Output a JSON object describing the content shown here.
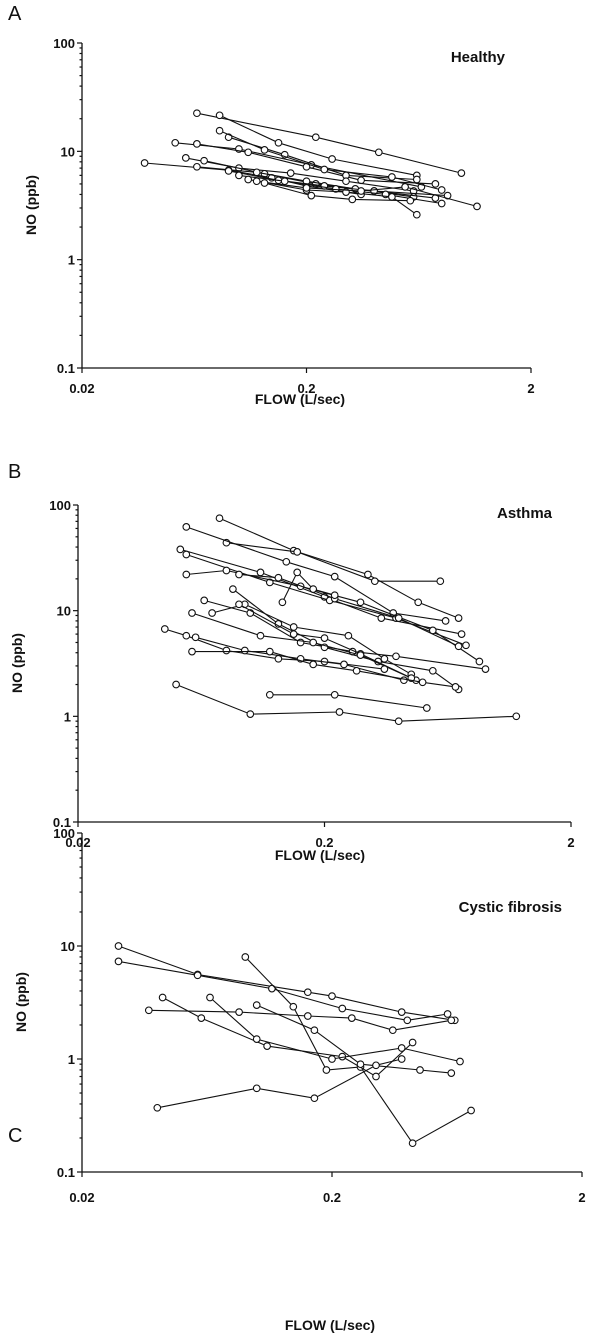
{
  "chart_data": [
    {
      "type": "line",
      "panel_letter": "A",
      "title": "Healthy",
      "xlabel": "FLOW (L/sec)",
      "ylabel": "NO (ppb)",
      "x_scale": "log",
      "y_scale": "log",
      "xlim": [
        0.02,
        2
      ],
      "ylim": [
        0.1,
        100
      ],
      "x_ticks": [
        "0.02",
        "0.2",
        "2"
      ],
      "y_ticks": [
        "100",
        "10",
        "1",
        "0.1"
      ],
      "grid": false,
      "series": [
        {
          "x": [
            0.065,
            0.22,
            0.42,
            0.98
          ],
          "y": [
            22.5,
            13.5,
            9.8,
            6.3
          ]
        },
        {
          "x": [
            0.082,
            0.15,
            0.26,
            0.62
          ],
          "y": [
            21.5,
            12,
            8.5,
            6
          ]
        },
        {
          "x": [
            0.052,
            0.1,
            0.21,
            0.65
          ],
          "y": [
            12,
            10.5,
            7.5,
            4.7
          ]
        },
        {
          "x": [
            0.065,
            0.11,
            0.2,
            0.35,
            0.75
          ],
          "y": [
            11.7,
            9.8,
            7.2,
            5.4,
            5
          ]
        },
        {
          "x": [
            0.09,
            0.16,
            0.3,
            0.62
          ],
          "y": [
            13.5,
            9.3,
            6,
            5.5
          ]
        },
        {
          "x": [
            0.082,
            0.13,
            0.24,
            0.48,
            0.8
          ],
          "y": [
            15.5,
            10.3,
            6.8,
            5.8,
            4.4
          ]
        },
        {
          "x": [
            0.058,
            0.1,
            0.17,
            0.3,
            0.6
          ],
          "y": [
            8.7,
            7,
            6.3,
            5.3,
            4.3
          ]
        },
        {
          "x": [
            0.07,
            0.13,
            0.22,
            0.4,
            0.85
          ],
          "y": [
            8.2,
            6.2,
            5,
            4.3,
            3.9
          ]
        },
        {
          "x": [
            0.038,
            0.09,
            0.14,
            0.2,
            0.35
          ],
          "y": [
            7.8,
            6.7,
            5.7,
            4.8,
            4
          ]
        },
        {
          "x": [
            0.065,
            0.12,
            0.2,
            0.33,
            0.6
          ],
          "y": [
            7.2,
            6.4,
            5.3,
            4.5,
            3.8
          ]
        },
        {
          "x": [
            0.09,
            0.15,
            0.24,
            0.4,
            0.75
          ],
          "y": [
            6.6,
            5.4,
            4.8,
            4.3,
            3.7
          ]
        },
        {
          "x": [
            0.1,
            0.16,
            0.27,
            0.45,
            0.8
          ],
          "y": [
            6,
            5.3,
            4.5,
            4,
            3.3
          ]
        },
        {
          "x": [
            0.11,
            0.2,
            0.3,
            0.48,
            0.62
          ],
          "y": [
            5.5,
            4.4,
            4.2,
            3.8,
            2.6
          ]
        },
        {
          "x": [
            0.12,
            0.2,
            0.35,
            0.55,
            1.15
          ],
          "y": [
            5.3,
            4.6,
            4.3,
            4.7,
            3.1
          ]
        },
        {
          "x": [
            0.13,
            0.21,
            0.32,
            0.58
          ],
          "y": [
            5.1,
            3.9,
            3.6,
            3.5
          ]
        }
      ]
    },
    {
      "type": "line",
      "panel_letter": "B",
      "title": "Asthma",
      "xlabel": "FLOW (L/sec)",
      "ylabel": "NO (ppb)",
      "x_scale": "log",
      "y_scale": "log",
      "xlim": [
        0.02,
        2
      ],
      "ylim": [
        0.1,
        100
      ],
      "x_ticks": [
        "0.02",
        "0.2",
        "2"
      ],
      "y_ticks": [
        "100",
        "10",
        "1",
        "0.1"
      ],
      "grid": false,
      "series": [
        {
          "x": [
            0.075,
            0.15,
            0.3,
            0.48,
            0.7
          ],
          "y": [
            75,
            37,
            22,
            12,
            8.5
          ]
        },
        {
          "x": [
            0.08,
            0.155,
            0.32,
            0.59
          ],
          "y": [
            44,
            36,
            19,
            19
          ]
        },
        {
          "x": [
            0.055,
            0.14,
            0.22,
            0.38,
            0.62
          ],
          "y": [
            62,
            29,
            21,
            9.5,
            8
          ]
        },
        {
          "x": [
            0.052,
            0.11,
            0.2,
            0.34,
            0.72
          ],
          "y": [
            38,
            23,
            13.5,
            8.5,
            6
          ]
        },
        {
          "x": [
            0.055,
            0.12,
            0.21,
            0.39,
            0.75
          ],
          "y": [
            34,
            18.5,
            12.5,
            8.5,
            4.7
          ]
        },
        {
          "x": [
            0.055,
            0.08,
            0.16,
            0.28,
            0.55,
            0.85
          ],
          "y": [
            22,
            24,
            17,
            12,
            6.5,
            3.3
          ]
        },
        {
          "x": [
            0.09,
            0.13,
            0.22,
            0.4,
            0.7
          ],
          "y": [
            22,
            20.5,
            13,
            8.5,
            4.6
          ]
        },
        {
          "x": [
            0.135,
            0.155,
            0.18,
            0.22
          ],
          "y": [
            12,
            23,
            16,
            14
          ]
        },
        {
          "x": [
            0.065,
            0.1,
            0.16,
            0.26,
            0.39,
            0.9
          ],
          "y": [
            12.5,
            9.5,
            5,
            4.1,
            3.7,
            2.8
          ]
        },
        {
          "x": [
            0.07,
            0.095,
            0.15,
            0.25,
            0.35,
            0.45
          ],
          "y": [
            9.5,
            11.5,
            7,
            5.8,
            3.5,
            2.5
          ]
        },
        {
          "x": [
            0.085,
            0.13,
            0.2,
            0.33,
            0.55,
            0.7
          ],
          "y": [
            16,
            7.5,
            4.5,
            3.3,
            2.7,
            1.8
          ]
        },
        {
          "x": [
            0.09,
            0.15,
            0.2,
            0.28,
            0.47
          ],
          "y": [
            11.5,
            6,
            5.5,
            3.9,
            2.2
          ]
        },
        {
          "x": [
            0.058,
            0.11,
            0.18,
            0.28,
            0.45
          ],
          "y": [
            9.5,
            5.8,
            5,
            3.8,
            2.3
          ]
        },
        {
          "x": [
            0.045,
            0.055,
            0.08,
            0.13,
            0.2,
            0.35
          ],
          "y": [
            6.7,
            5.8,
            4.2,
            3.5,
            3.3,
            2.8
          ]
        },
        {
          "x": [
            0.06,
            0.095,
            0.16,
            0.24,
            0.42
          ],
          "y": [
            5.6,
            4.2,
            3.5,
            3.1,
            2.2
          ]
        },
        {
          "x": [
            0.058,
            0.12,
            0.18,
            0.27,
            0.5,
            0.68
          ],
          "y": [
            4.1,
            4.1,
            3.1,
            2.7,
            2.1,
            1.9
          ]
        },
        {
          "x": [
            0.12,
            0.22,
            0.52
          ],
          "y": [
            1.6,
            1.6,
            1.2
          ]
        },
        {
          "x": [
            0.05,
            0.1,
            0.23,
            0.4,
            1.2
          ],
          "y": [
            2,
            1.05,
            1.1,
            0.9,
            1
          ]
        }
      ]
    },
    {
      "type": "line",
      "panel_letter": "C",
      "title": "Cystic fibrosis",
      "xlabel": "FLOW (L/sec)",
      "ylabel": "NO (ppb)",
      "x_scale": "log",
      "y_scale": "log",
      "xlim": [
        0.02,
        2
      ],
      "ylim": [
        0.1,
        100
      ],
      "x_ticks": [
        "0.02",
        "0.2",
        "2"
      ],
      "y_ticks": [
        "100",
        "10",
        "1",
        "0.1"
      ],
      "grid": false,
      "series": [
        {
          "x": [
            0.028,
            0.058,
            0.16,
            0.2,
            0.38,
            0.62
          ],
          "y": [
            10,
            5.6,
            3.9,
            3.6,
            2.6,
            2.2
          ]
        },
        {
          "x": [
            0.028,
            0.058,
            0.115,
            0.22,
            0.4,
            0.58
          ],
          "y": [
            7.3,
            5.5,
            4.2,
            2.8,
            2.2,
            2.5
          ]
        },
        {
          "x": [
            0.037,
            0.085,
            0.16,
            0.24,
            0.35,
            0.6
          ],
          "y": [
            2.7,
            2.6,
            2.4,
            2.3,
            1.8,
            2.2
          ]
        },
        {
          "x": [
            0.09,
            0.14,
            0.19,
            0.26,
            0.42,
            0.72
          ],
          "y": [
            8,
            2.9,
            0.8,
            0.85,
            0.18,
            0.35
          ]
        },
        {
          "x": [
            0.042,
            0.06,
            0.11,
            0.22,
            0.3,
            0.42
          ],
          "y": [
            3.5,
            2.3,
            1.3,
            1.05,
            0.7,
            1.4
          ]
        },
        {
          "x": [
            0.065,
            0.1,
            0.2,
            0.38,
            0.65
          ],
          "y": [
            3.5,
            1.5,
            1,
            1.25,
            0.95
          ]
        },
        {
          "x": [
            0.1,
            0.17,
            0.26,
            0.45,
            0.6
          ],
          "y": [
            3,
            1.8,
            0.9,
            0.8,
            0.75
          ]
        },
        {
          "x": [
            0.04,
            0.1,
            0.17,
            0.3,
            0.38
          ],
          "y": [
            0.37,
            0.55,
            0.45,
            0.88,
            1
          ]
        }
      ]
    }
  ]
}
